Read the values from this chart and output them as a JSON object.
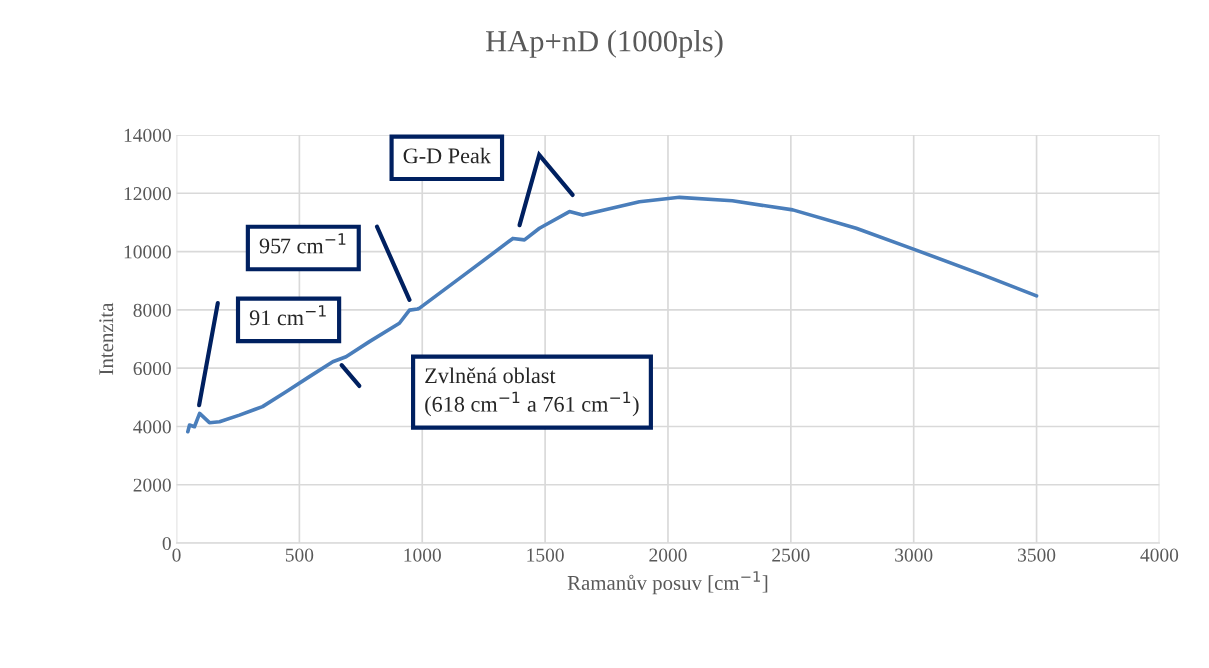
{
  "chart_data": {
    "type": "line",
    "title": "HAp+nD (1000pls)",
    "xlabel": "Ramanův posuv [cm$^{−1}$]",
    "ylabel": "Intenzita",
    "x": [
      46,
      53,
      73,
      94,
      134,
      175,
      256,
      350,
      446,
      541,
      636,
      690,
      785,
      907,
      948,
      981,
      989,
      1179,
      1369,
      1416,
      1477,
      1599,
      1653,
      1884,
      2047,
      2262,
      2508,
      2766,
      3010,
      3281,
      3500
    ],
    "series": [
      {
        "color": "#4a7ebb",
        "values": [
          3820,
          4050,
          3990,
          4450,
          4130,
          4160,
          4390,
          4680,
          5190,
          5710,
          6220,
          6390,
          6910,
          7540,
          7990,
          8030,
          8060,
          9250,
          10450,
          10400,
          10800,
          11370,
          11250,
          11710,
          11860,
          11740,
          11430,
          10800,
          10050,
          9200,
          8480
        ]
      }
    ],
    "xlim": [
      0,
      4000
    ],
    "xticks": [
      0,
      500,
      1000,
      1500,
      2000,
      2500,
      3000,
      3500,
      4000
    ],
    "ylim": [
      0,
      14000
    ],
    "yticks": [
      0,
      2000,
      4000,
      6000,
      8000,
      10000,
      12000,
      14000
    ],
    "grid": true,
    "legend": false,
    "marker": "none",
    "line_style": "solid",
    "annotations": [
      "91 cm$^{−1}$",
      "957 cm$^{−1}$",
      "G-D Peak",
      "Zvlněná oblast\n(618 cm$^{−1}$ a 761 cm$^{−1}$)"
    ]
  }
}
